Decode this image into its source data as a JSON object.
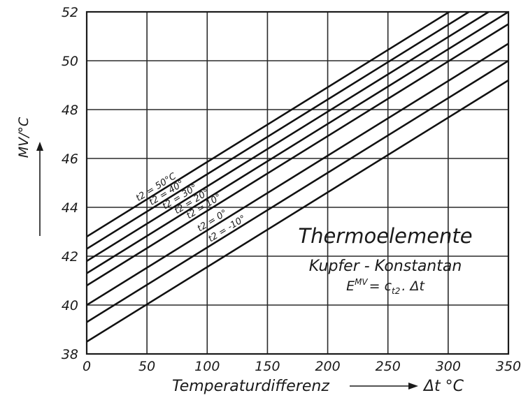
{
  "chart_data": {
    "type": "line",
    "title": "Thermoelemente",
    "subtitle": "Kupfer - Konstantan",
    "formula": {
      "lhs": "E",
      "sup": "MV",
      "rhs": "= c",
      "sub": "t2",
      "tail": ". Δt"
    },
    "xlabel": "Temperaturdifferenz",
    "xlabel_suffix": "Δt °C",
    "ylabel": "MV/°C",
    "xlim": [
      0,
      350
    ],
    "ylim": [
      38,
      52
    ],
    "x_ticks": [
      "0",
      "50",
      "100",
      "150",
      "200",
      "250",
      "300",
      "350"
    ],
    "y_ticks": [
      "38",
      "40",
      "42",
      "44",
      "46",
      "48",
      "50",
      "52"
    ],
    "grid": true,
    "series": [
      {
        "name": "t2 = 50°C",
        "x": [
          0,
          350
        ],
        "y": [
          42.8,
          53.5
        ]
      },
      {
        "name": "t2 = 40°",
        "x": [
          0,
          350
        ],
        "y": [
          42.3,
          53.0
        ]
      },
      {
        "name": "t2 = 30°",
        "x": [
          0,
          350
        ],
        "y": [
          41.8,
          52.5
        ]
      },
      {
        "name": "t2 = 20°",
        "x": [
          0,
          350
        ],
        "y": [
          41.3,
          52.0
        ]
      },
      {
        "name": "t2 = 10°",
        "x": [
          0,
          350
        ],
        "y": [
          40.8,
          51.5
        ]
      },
      {
        "name": "t2 = 0°",
        "x": [
          0,
          350
        ],
        "y": [
          40.0,
          50.7
        ]
      },
      {
        "name": "t2 = -10°",
        "x": [
          0,
          350
        ],
        "y": [
          39.3,
          50.0
        ]
      },
      {
        "name": "",
        "x": [
          0,
          350
        ],
        "y": [
          38.5,
          49.2
        ]
      }
    ],
    "series_label_x": [
      44,
      55,
      66,
      76,
      86,
      95,
      104,
      0
    ]
  }
}
